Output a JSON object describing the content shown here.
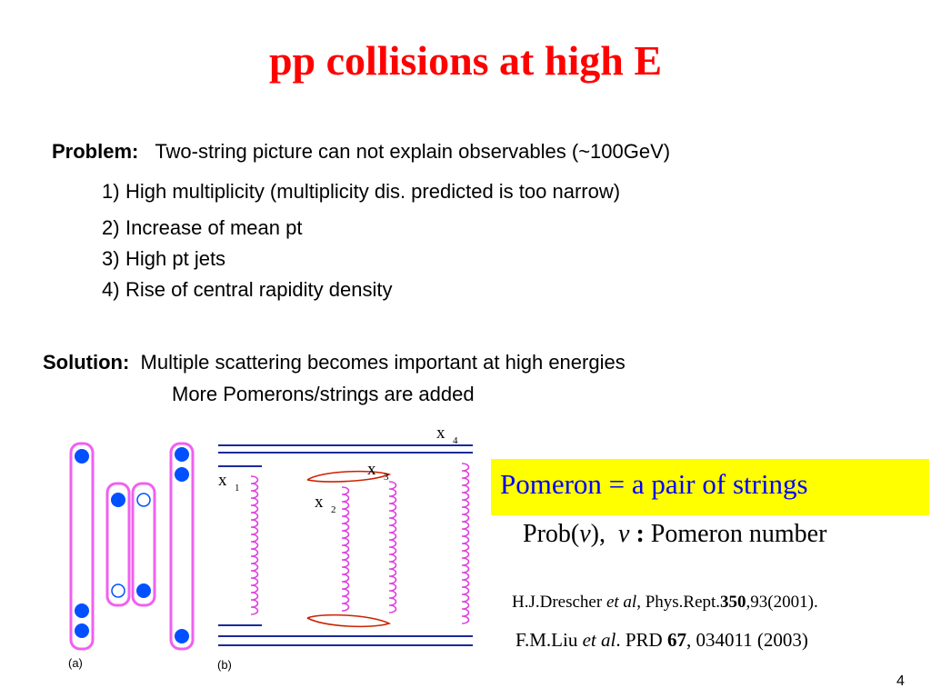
{
  "title": "pp collisions at high E",
  "problem": {
    "label": "Problem:",
    "text": "Two-string picture can not explain observables (~100GeV)",
    "items": [
      {
        "num": "1)",
        "text": "High multiplicity (multiplicity dis. predicted is too narrow)"
      },
      {
        "num": "2)",
        "text": "Increase of mean pt"
      },
      {
        "num": "3)",
        "text": "High pt jets"
      },
      {
        "num": "4)",
        "text": "Rise of central rapidity density"
      }
    ]
  },
  "solution": {
    "label": "Solution:",
    "line1": "Multiple scattering becomes important at high energies",
    "line2": "More Pomerons/strings are added"
  },
  "diagram_a": {
    "label": "(a)"
  },
  "diagram_b": {
    "label": "(b)",
    "x_labels": [
      "x",
      "1",
      "x",
      "2",
      "x",
      "3",
      "x",
      "4"
    ]
  },
  "pomeron_box": {
    "text": "Pomeron  =  a pair of strings",
    "bg_color": "#ffff00",
    "text_color": "#0000ff"
  },
  "formula": {
    "prob": "Prob(",
    "nu": "ν",
    "close": "),",
    "nu2": "ν",
    "colon": ":",
    "rest": "Pomeron number"
  },
  "refs": {
    "ref1": {
      "a": "H.J.Drescher ",
      "b": "et al",
      "c": ", Phys.Rept.",
      "d": "350",
      "e": ",93(2001)."
    },
    "ref2": {
      "a": "F.M.Liu  ",
      "b": "et al",
      "c": ". PRD ",
      "d": "67",
      "e": ", 034011 (2003)"
    }
  },
  "page_number": "4"
}
